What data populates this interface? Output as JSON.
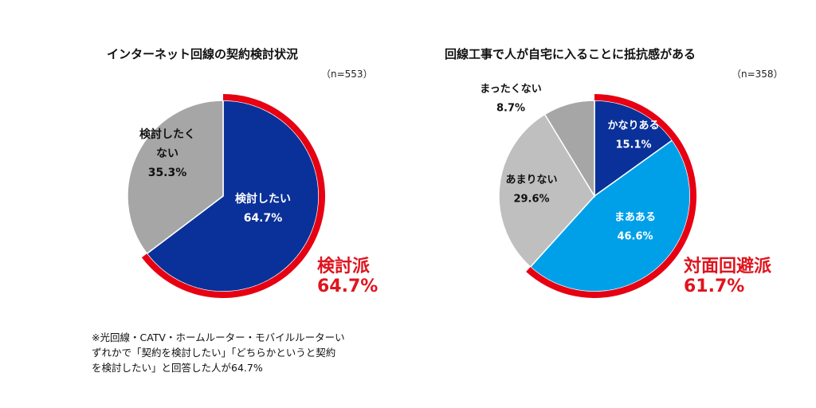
{
  "chart_data": [
    {
      "type": "pie",
      "title": "インターネット回線の契約検討状況",
      "n_label": "（n=553）",
      "slices": [
        {
          "name": "検討したい",
          "label_lines": [
            "検討したい"
          ],
          "value": 64.7,
          "value_label": "64.7%",
          "color": "#0a3199",
          "text_color": "#ffffff"
        },
        {
          "name": "検討したくない",
          "label_lines": [
            "検討したく",
            "ない"
          ],
          "value": 35.3,
          "value_label": "35.3%",
          "color": "#a6a6a6",
          "text_color": "#111111"
        }
      ],
      "highlight": {
        "value": 64.7,
        "color": "#e60012",
        "label_lines": [
          "検討派",
          "64.7%"
        ]
      },
      "footnote_lines": [
        "※光回線・CATV・ホームルーター・モバイルルーターい",
        "ずれかで「契約を検討したい」「どちらかというと契約",
        "を検討したい」と回答した人が64.7%"
      ]
    },
    {
      "type": "pie",
      "title": "回線工事で人が自宅に入ることに抵抗感がある",
      "n_label": "（n=358）",
      "slices": [
        {
          "name": "かなりある",
          "label_lines": [
            "かなりある"
          ],
          "value": 15.1,
          "value_label": "15.1%",
          "color": "#0a3199",
          "text_color": "#ffffff"
        },
        {
          "name": "まあある",
          "label_lines": [
            "まあある"
          ],
          "value": 46.6,
          "value_label": "46.6%",
          "color": "#00a0e9",
          "text_color": "#ffffff"
        },
        {
          "name": "あまりない",
          "label_lines": [
            "あまりない"
          ],
          "value": 29.6,
          "value_label": "29.6%",
          "color": "#bfbfbf",
          "text_color": "#111111"
        },
        {
          "name": "まったくない",
          "label_lines": [
            "まったくない"
          ],
          "value": 8.7,
          "value_label": "8.7%",
          "color": "#a6a6a6",
          "text_color": "#111111"
        }
      ],
      "highlight": {
        "value": 61.7,
        "color": "#e60012",
        "label_lines": [
          "対面回避派",
          "61.7%"
        ]
      }
    }
  ]
}
